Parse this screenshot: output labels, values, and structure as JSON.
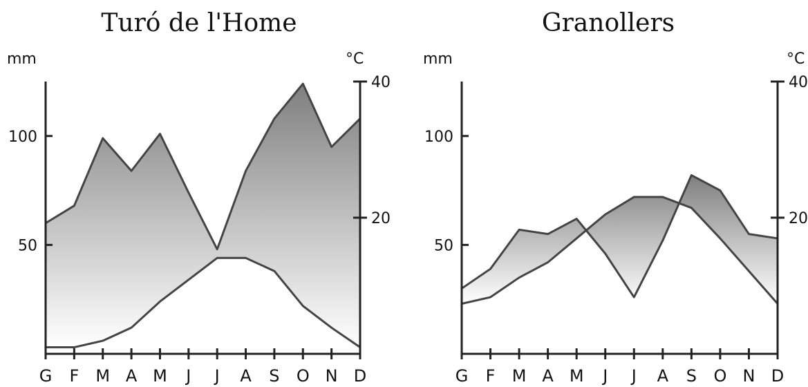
{
  "chart_data": [
    {
      "type": "area",
      "title": "Turó de l'Home",
      "left_unit": "mm",
      "right_unit": "°C",
      "categories": [
        "G",
        "F",
        "M",
        "A",
        "M",
        "J",
        "J",
        "A",
        "S",
        "O",
        "N",
        "D"
      ],
      "left_ticks": [
        50,
        100
      ],
      "right_ticks": [
        20,
        40
      ],
      "ylim_precip": [
        0,
        125
      ],
      "ylim_temp": [
        0,
        40
      ],
      "series": [
        {
          "values": [
            60,
            68,
            99,
            84,
            101,
            74,
            48,
            84,
            108,
            124,
            95,
            108
          ]
        },
        {
          "values": [
            3,
            3,
            6,
            12,
            24,
            34,
            44,
            44,
            38,
            22,
            12,
            3
          ]
        }
      ],
      "fill_colors": [
        "#7f7f7f",
        "#ffffff"
      ]
    },
    {
      "type": "area",
      "title": "Granollers",
      "left_unit": "mm",
      "right_unit": "°C",
      "categories": [
        "G",
        "F",
        "M",
        "A",
        "M",
        "J",
        "J",
        "A",
        "S",
        "O",
        "N",
        "D"
      ],
      "left_ticks": [
        50,
        100
      ],
      "right_ticks": [
        20,
        40
      ],
      "ylim_precip": [
        0,
        125
      ],
      "ylim_temp": [
        0,
        40
      ],
      "series": [
        {
          "values": [
            30,
            39,
            57,
            55,
            62,
            46,
            26,
            52,
            82,
            75,
            55,
            53
          ]
        },
        {
          "values": [
            23,
            26,
            35,
            42,
            53,
            64,
            72,
            72,
            67,
            53,
            38,
            23
          ]
        }
      ],
      "fill_colors": [
        "#7f7f7f",
        "#ffffff"
      ]
    }
  ]
}
